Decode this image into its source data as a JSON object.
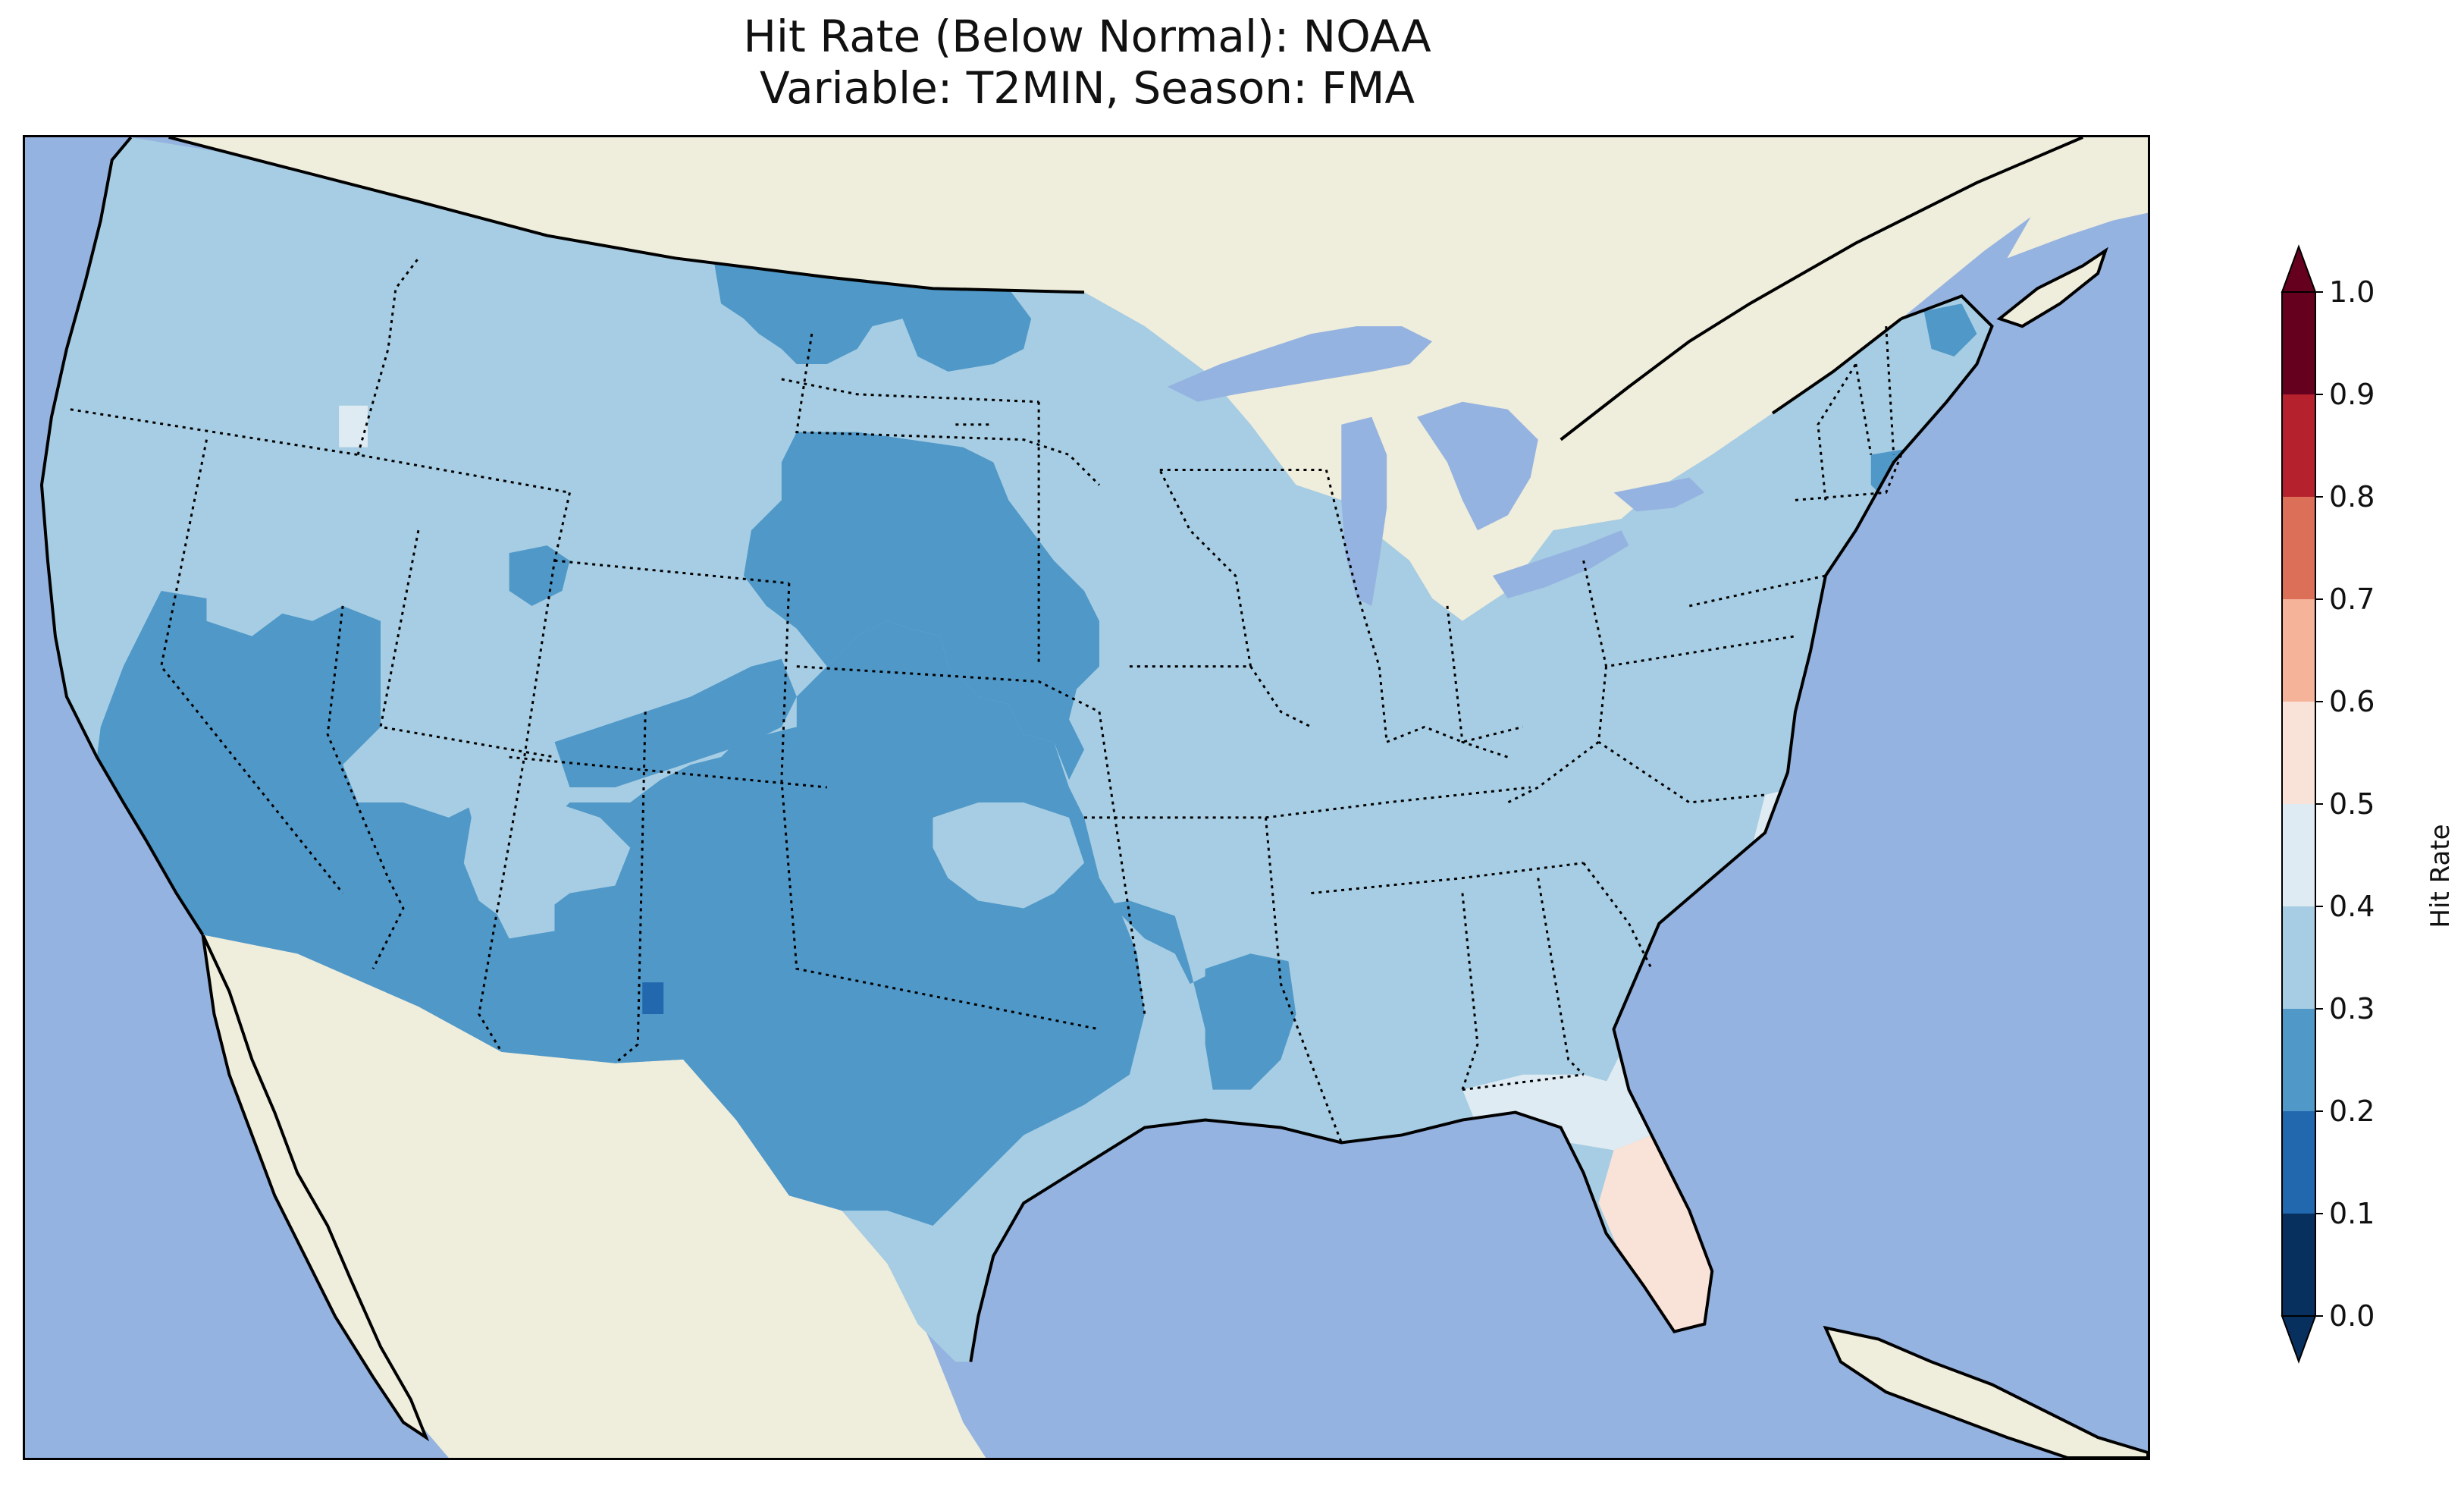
{
  "title": {
    "line1": "Hit Rate (Below Normal): NOAA",
    "line2": "Variable: T2MIN, Season: FMA"
  },
  "map": {
    "region": "Contiguous United States",
    "ocean_color": "#95b3e0",
    "land_color": "#efeddb",
    "lake_color": "#95b3e0",
    "regions": [
      {
        "name": "Pacific Northwest / Northern Rockies",
        "bin": "0.3-0.4"
      },
      {
        "name": "California / Nevada / Arizona / Southern Utah",
        "bin": "0.2-0.3"
      },
      {
        "name": "Southern Idaho patch",
        "bin": "0.4-0.5"
      },
      {
        "name": "Northern Plains (ND, SD, NE, KS)",
        "bin": "0.2-0.3"
      },
      {
        "name": "Colorado / New Mexico / Texas / Oklahoma",
        "bin": "0.2-0.3"
      },
      {
        "name": "Central New Mexico patch",
        "bin": "0.1-0.2"
      },
      {
        "name": "Arkansas / Louisiana patch",
        "bin": "0.2-0.3"
      },
      {
        "name": "Midwest / Great Lakes / Northeast",
        "bin": "0.3-0.4"
      },
      {
        "name": "Southeast (TN, AL, GA, Carolinas)",
        "bin": "0.3-0.4"
      },
      {
        "name": "Atlantic coastal strip / Florida panhandle",
        "bin": "0.4-0.5"
      },
      {
        "name": "Florida peninsula",
        "bin": "0.5-0.6"
      },
      {
        "name": "Maine coast / Massachusetts",
        "bin": "0.2-0.3"
      }
    ]
  },
  "colorbar": {
    "label": "Hit Rate",
    "ticks": [
      "0.0",
      "0.1",
      "0.2",
      "0.3",
      "0.4",
      "0.5",
      "0.6",
      "0.7",
      "0.8",
      "0.9",
      "1.0"
    ],
    "colors": [
      "#08305f",
      "#2268ae",
      "#4f98c8",
      "#a6cde3",
      "#deebf2",
      "#f9e3d8",
      "#f5b39a",
      "#dc6f58",
      "#b6212e",
      "#66001f"
    ],
    "extend": "both"
  }
}
